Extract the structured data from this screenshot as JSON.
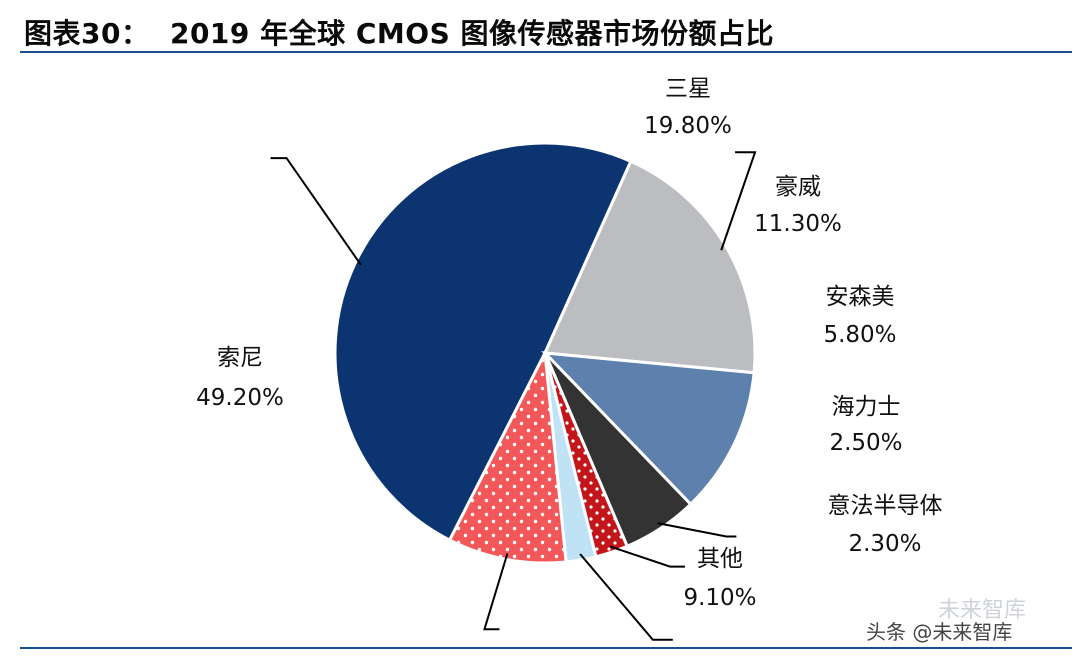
{
  "title": "图表30：  2019 年全球 CMOS 图像传感器市场份额占比",
  "chart_data": {
    "type": "pie",
    "title": "图表30：  2019 年全球 CMOS 图像传感器市场份额占比",
    "slices": [
      {
        "name": "索尼",
        "value": 49.2,
        "label": "49.20%",
        "color": "#0b3470",
        "pattern": "none"
      },
      {
        "name": "三星",
        "value": 19.8,
        "label": "19.80%",
        "color": "#bcbdc0",
        "pattern": "none"
      },
      {
        "name": "豪威",
        "value": 11.3,
        "label": "11.30%",
        "color": "#5e80ad",
        "pattern": "none"
      },
      {
        "name": "安森美",
        "value": 5.8,
        "label": "5.80%",
        "color": "#333333",
        "pattern": "none"
      },
      {
        "name": "海力士",
        "value": 2.5,
        "label": "2.50%",
        "color": "#c2161b",
        "pattern": "dots"
      },
      {
        "name": "意法半导体",
        "value": 2.3,
        "label": "2.30%",
        "color": "#bfe3f5",
        "pattern": "none"
      },
      {
        "name": "其他",
        "value": 9.1,
        "label": "9.10%",
        "color": "#f2585a",
        "pattern": "dots"
      }
    ]
  },
  "watermark": {
    "text1": "未来智库",
    "text2": "头条 @未来智库"
  }
}
